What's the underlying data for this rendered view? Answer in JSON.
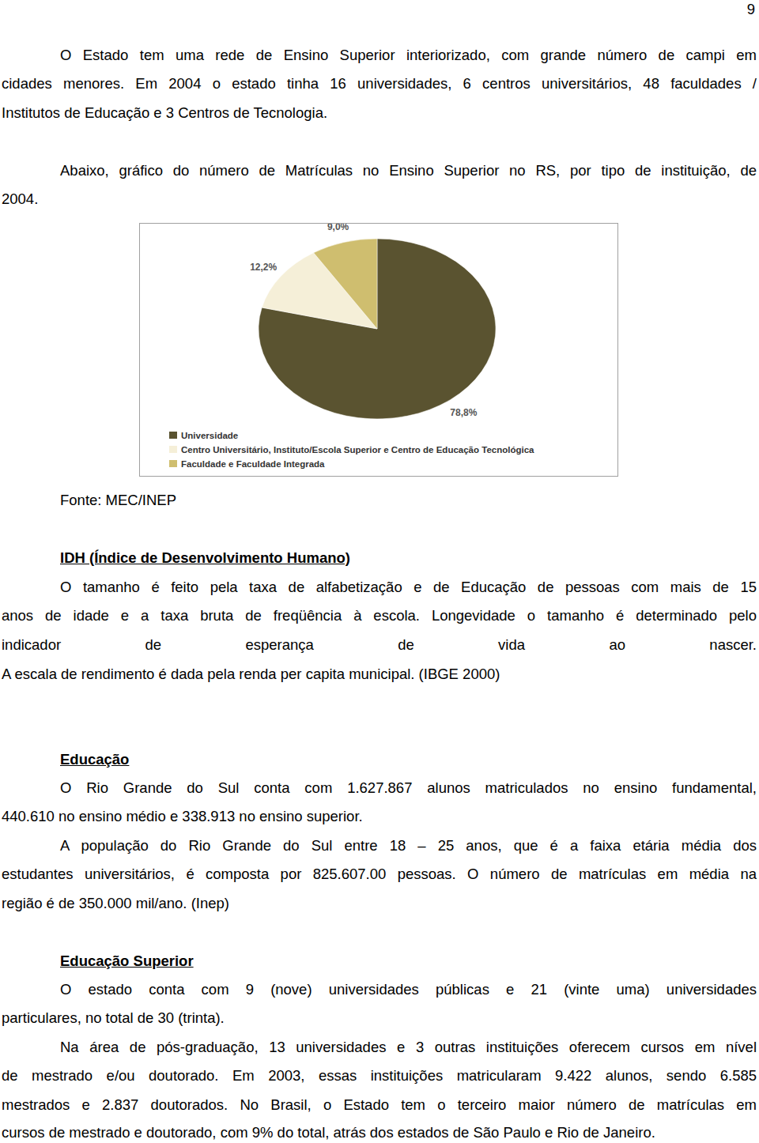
{
  "page_number": 9,
  "intro": [
    {
      "lines": [
        "O Estado tem uma rede de Ensino Superior interiorizado, com grande número de campi em",
        "cidades menores. Em 2004 o estado tinha 16 universidades, 6 centros universitários, 48 faculdades /",
        "Institutos de Educação e 3 Centros de Tecnologia."
      ]
    },
    {
      "lines": [
        "Abaixo, gráfico do número de Matrículas no Ensino Superior no RS, por tipo de instituição, de",
        "2004."
      ]
    }
  ],
  "chart_data": {
    "type": "pie",
    "categories": [
      "Universidade",
      "Centro Universitário, Instituto/Escola Superior e Centro de Educação Tecnológica",
      "Faculdade e Faculdade Integrada"
    ],
    "values": [
      78.8,
      12.2,
      9.0
    ],
    "value_labels": [
      "78,8%",
      "12,2%",
      "9,0%"
    ],
    "colors": [
      "#5a5330",
      "#f5efd8",
      "#cfbe6f"
    ],
    "data_labels": true,
    "legend": "bottom"
  },
  "source": "Fonte: MEC/INEP",
  "sections": [
    {
      "heading": "IDH (Índice de Desenvolvimento Humano)",
      "paragraphs": [
        {
          "lines": [
            "O tamanho é feito pela taxa de alfabetização e de Educação de pessoas com mais de 15",
            "anos de idade e a taxa bruta de freqüência à escola. Longevidade o tamanho é determinado pelo",
            "indicador de esperança de vida ao nascer.",
            "A escala de rendimento é dada pela renda per capita municipal. (IBGE 2000)"
          ]
        }
      ]
    },
    {
      "heading": "Educação",
      "paragraphs": [
        {
          "lines": [
            "O Rio Grande do Sul conta com 1.627.867 alunos matriculados no ensino fundamental,",
            "440.610 no ensino médio e 338.913 no ensino superior."
          ]
        },
        {
          "lines": [
            "A população do Rio Grande do Sul entre 18 – 25 anos, que é a faixa etária média dos",
            "estudantes universitários, é composta por 825.607.00 pessoas. O número de matrículas em média na",
            "região é de 350.000 mil/ano. (Inep)"
          ]
        }
      ]
    },
    {
      "heading": "Educação Superior",
      "paragraphs": [
        {
          "lines": [
            "O estado conta com 9 (nove) universidades públicas e 21 (vinte uma) universidades",
            "particulares, no total de 30 (trinta)."
          ]
        },
        {
          "lines": [
            "Na área de pós-graduação, 13 universidades e 3 outras instituições oferecem cursos em nível",
            "de mestrado e/ou doutorado. Em 2003, essas instituições matricularam 9.422 alunos, sendo 6.585",
            "mestrados e 2.837 doutorados. No Brasil, o Estado tem o terceiro maior número de matrículas em",
            "cursos de mestrado e doutorado, com 9% do total, atrás dos estados de São Paulo e Rio de Janeiro."
          ]
        }
      ]
    }
  ]
}
